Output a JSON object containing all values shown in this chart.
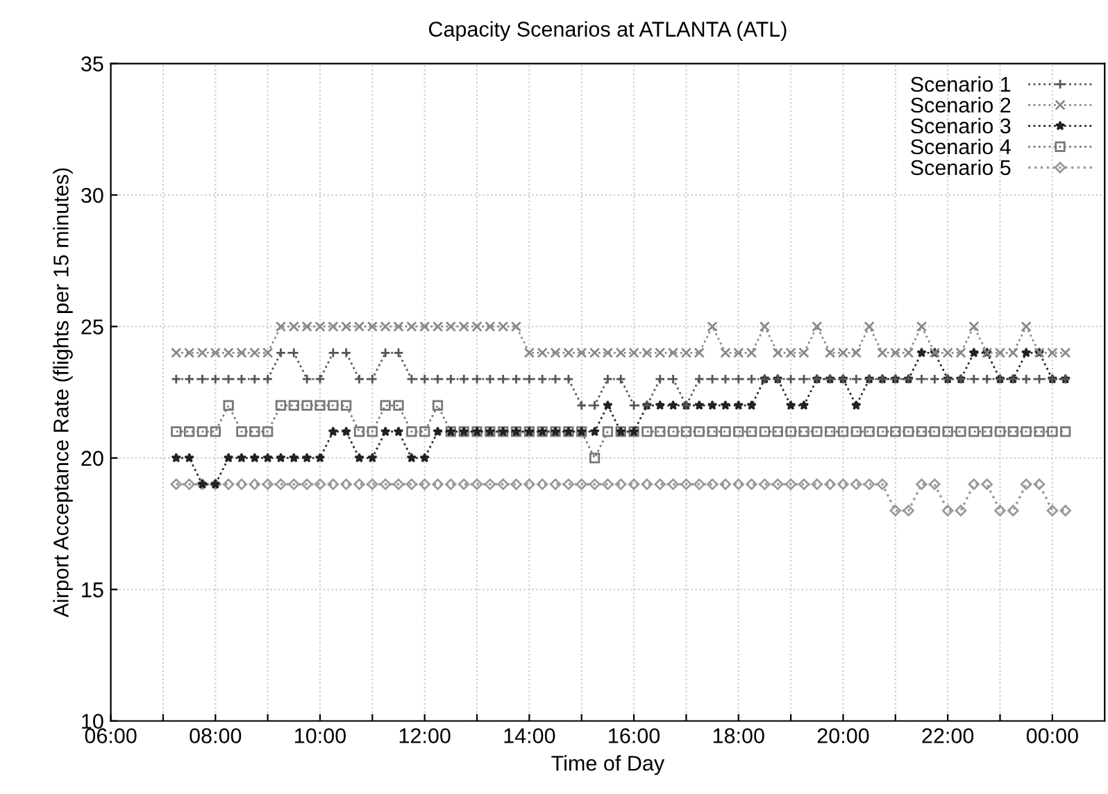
{
  "chart_data": {
    "type": "line",
    "title": "Capacity Scenarios at ATLANTA (ATL)",
    "xlabel": "Time of Day",
    "ylabel": "Airport Acceptance Rate (flights per 15 minutes)",
    "x": [
      7.25,
      7.5,
      7.75,
      8,
      8.25,
      8.5,
      8.75,
      9,
      9.25,
      9.5,
      9.75,
      10,
      10.25,
      10.5,
      10.75,
      11,
      11.25,
      11.5,
      11.75,
      12,
      12.25,
      12.5,
      12.75,
      13,
      13.25,
      13.5,
      13.75,
      14,
      14.25,
      14.5,
      14.75,
      15,
      15.25,
      15.5,
      15.75,
      16,
      16.25,
      16.5,
      16.75,
      17,
      17.25,
      17.5,
      17.75,
      18,
      18.25,
      18.5,
      18.75,
      19,
      19.25,
      19.5,
      19.75,
      20,
      20.25,
      20.5,
      20.75,
      21,
      21.25,
      21.5,
      21.75,
      22,
      22.25,
      22.5,
      22.75,
      23,
      23.25,
      23.5,
      23.75,
      24,
      24.25
    ],
    "series": [
      {
        "name": "Scenario 1",
        "color": "#555555",
        "marker": "plus",
        "values": [
          23,
          23,
          23,
          23,
          23,
          23,
          23,
          23,
          24,
          24,
          23,
          23,
          24,
          24,
          23,
          23,
          24,
          24,
          23,
          23,
          23,
          23,
          23,
          23,
          23,
          23,
          23,
          23,
          23,
          23,
          23,
          22,
          22,
          23,
          23,
          22,
          22,
          23,
          23,
          22,
          23,
          23,
          23,
          23,
          23,
          23,
          23,
          23,
          23,
          23,
          23,
          23,
          23,
          23,
          23,
          23,
          23,
          23,
          23,
          23,
          23,
          23,
          23,
          23,
          23,
          23,
          23,
          23,
          23
        ]
      },
      {
        "name": "Scenario 2",
        "color": "#888888",
        "marker": "cross",
        "values": [
          24,
          24,
          24,
          24,
          24,
          24,
          24,
          24,
          25,
          25,
          25,
          25,
          25,
          25,
          25,
          25,
          25,
          25,
          25,
          25,
          25,
          25,
          25,
          25,
          25,
          25,
          25,
          24,
          24,
          24,
          24,
          24,
          24,
          24,
          24,
          24,
          24,
          24,
          24,
          24,
          24,
          25,
          24,
          24,
          24,
          25,
          24,
          24,
          24,
          25,
          24,
          24,
          24,
          25,
          24,
          24,
          24,
          25,
          24,
          24,
          24,
          25,
          24,
          24,
          24,
          25,
          24,
          24,
          24
        ]
      },
      {
        "name": "Scenario 3",
        "color": "#222222",
        "marker": "star",
        "values": [
          20,
          20,
          19,
          19,
          20,
          20,
          20,
          20,
          20,
          20,
          20,
          20,
          21,
          21,
          20,
          20,
          21,
          21,
          20,
          20,
          21,
          21,
          21,
          21,
          21,
          21,
          21,
          21,
          21,
          21,
          21,
          21,
          21,
          22,
          21,
          21,
          22,
          22,
          22,
          22,
          22,
          22,
          22,
          22,
          22,
          23,
          23,
          22,
          22,
          23,
          23,
          23,
          22,
          23,
          23,
          23,
          23,
          24,
          24,
          23,
          23,
          24,
          24,
          23,
          23,
          24,
          24,
          23,
          23
        ]
      },
      {
        "name": "Scenario 4",
        "color": "#777777",
        "marker": "square",
        "values": [
          21,
          21,
          21,
          21,
          22,
          21,
          21,
          21,
          22,
          22,
          22,
          22,
          22,
          22,
          21,
          21,
          22,
          22,
          21,
          21,
          22,
          21,
          21,
          21,
          21,
          21,
          21,
          21,
          21,
          21,
          21,
          21,
          20,
          21,
          21,
          21,
          21,
          21,
          21,
          21,
          21,
          21,
          21,
          21,
          21,
          21,
          21,
          21,
          21,
          21,
          21,
          21,
          21,
          21,
          21,
          21,
          21,
          21,
          21,
          21,
          21,
          21,
          21,
          21,
          21,
          21,
          21,
          21,
          21
        ]
      },
      {
        "name": "Scenario 5",
        "color": "#999999",
        "marker": "diamond",
        "values": [
          19,
          19,
          19,
          19,
          19,
          19,
          19,
          19,
          19,
          19,
          19,
          19,
          19,
          19,
          19,
          19,
          19,
          19,
          19,
          19,
          19,
          19,
          19,
          19,
          19,
          19,
          19,
          19,
          19,
          19,
          19,
          19,
          19,
          19,
          19,
          19,
          19,
          19,
          19,
          19,
          19,
          19,
          19,
          19,
          19,
          19,
          19,
          19,
          19,
          19,
          19,
          19,
          19,
          19,
          19,
          18,
          18,
          19,
          19,
          18,
          18,
          19,
          19,
          18,
          18,
          19,
          19,
          18,
          18
        ]
      }
    ],
    "line_style": "dotted",
    "grid": true,
    "legend": "top right",
    "xlim": [
      6,
      25
    ],
    "ylim": [
      10,
      35
    ],
    "yticks": [
      10,
      15,
      20,
      25,
      30,
      35
    ],
    "xticks": [
      {
        "value": 6,
        "label": "06:00"
      },
      {
        "value": 7,
        "label": null
      },
      {
        "value": 8,
        "label": "08:00"
      },
      {
        "value": 9,
        "label": null
      },
      {
        "value": 10,
        "label": "10:00"
      },
      {
        "value": 11,
        "label": null
      },
      {
        "value": 12,
        "label": "12:00"
      },
      {
        "value": 13,
        "label": null
      },
      {
        "value": 14,
        "label": "14:00"
      },
      {
        "value": 15,
        "label": null
      },
      {
        "value": 16,
        "label": "16:00"
      },
      {
        "value": 17,
        "label": null
      },
      {
        "value": 18,
        "label": "18:00"
      },
      {
        "value": 19,
        "label": null
      },
      {
        "value": 20,
        "label": "20:00"
      },
      {
        "value": 21,
        "label": null
      },
      {
        "value": 22,
        "label": "22:00"
      },
      {
        "value": 23,
        "label": null
      },
      {
        "value": 24,
        "label": "00:00"
      }
    ]
  }
}
